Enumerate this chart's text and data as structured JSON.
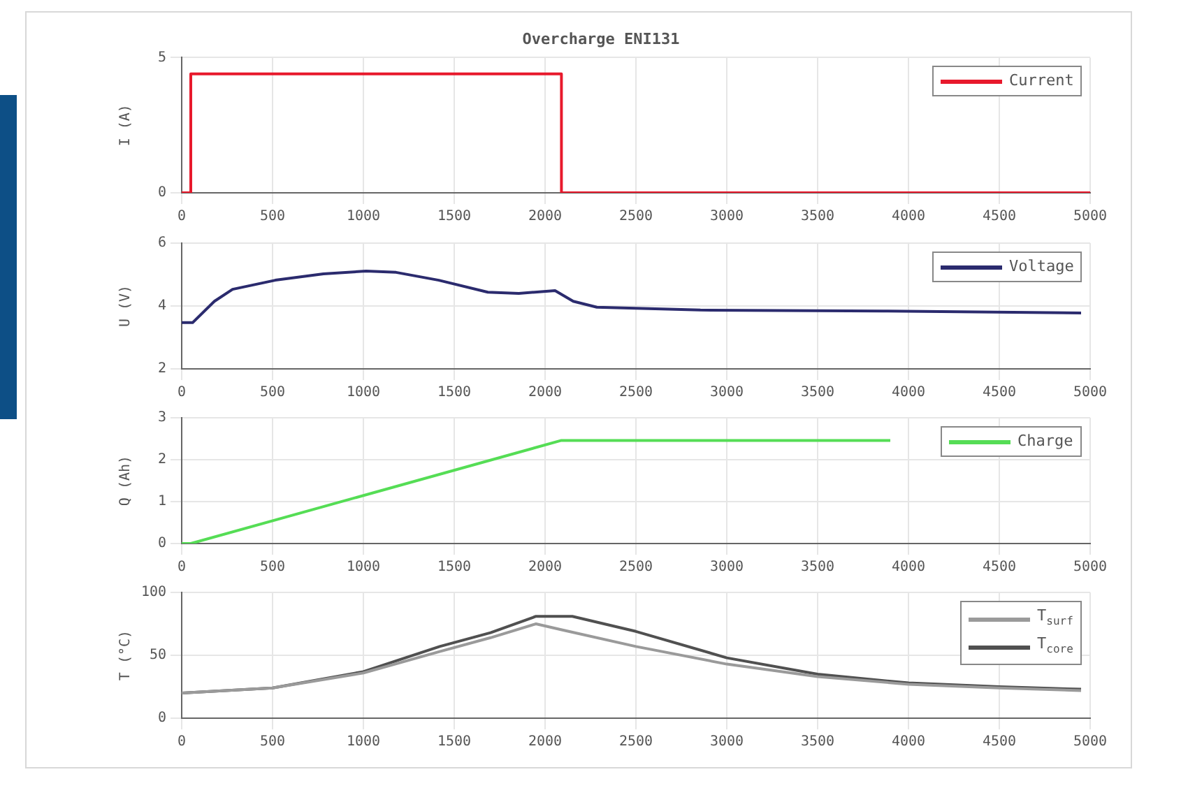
{
  "chart_data": [
    {
      "type": "line",
      "title": "Overcharge ENI131",
      "ylabel": "I (A)",
      "xlim": [
        0,
        5000
      ],
      "xticks": [
        0,
        500,
        1000,
        1500,
        2000,
        2500,
        3000,
        3500,
        4000,
        4500,
        5000
      ],
      "ylim": [
        0,
        5
      ],
      "yticks": [
        0,
        5
      ],
      "grid": true,
      "legend": "top right",
      "series": [
        {
          "name": "Current",
          "color": "#e8192c",
          "x": [
            0,
            50,
            50,
            2090,
            2090,
            5000
          ],
          "values": [
            0,
            0,
            4.4,
            4.4,
            0,
            0
          ]
        }
      ]
    },
    {
      "type": "line",
      "ylabel": "U (V)",
      "xlim": [
        0,
        5000
      ],
      "xticks": [
        0,
        500,
        1000,
        1500,
        2000,
        2500,
        3000,
        3500,
        4000,
        4500,
        5000
      ],
      "ylim": [
        2,
        6
      ],
      "yticks": [
        2,
        4,
        6
      ],
      "grid": true,
      "legend": "top right",
      "series": [
        {
          "name": "Voltage",
          "color": "#2b2b6e",
          "x": [
            0,
            60,
            180,
            280,
            515,
            780,
            1015,
            1180,
            1415,
            1685,
            1855,
            2055,
            2155,
            2285,
            2855,
            3860,
            4950
          ],
          "values": [
            3.47,
            3.47,
            4.15,
            4.53,
            4.82,
            5.02,
            5.11,
            5.07,
            4.82,
            4.44,
            4.4,
            4.49,
            4.15,
            3.96,
            3.87,
            3.84,
            3.78
          ]
        }
      ]
    },
    {
      "type": "line",
      "ylabel": "Q (Ah)",
      "xlim": [
        0,
        5000
      ],
      "xticks": [
        0,
        500,
        1000,
        1500,
        2000,
        2500,
        3000,
        3500,
        4000,
        4500,
        5000
      ],
      "ylim": [
        0,
        3
      ],
      "yticks": [
        0,
        1,
        2,
        3
      ],
      "grid": true,
      "legend": "top right",
      "series": [
        {
          "name": "Charge",
          "color": "#55dd55",
          "x": [
            0,
            50,
            2090,
            3900
          ],
          "values": [
            0,
            0,
            2.46,
            2.46
          ]
        }
      ]
    },
    {
      "type": "line",
      "ylabel": "T (°C)",
      "xlim": [
        0,
        5000
      ],
      "xticks": [
        0,
        500,
        1000,
        1500,
        2000,
        2500,
        3000,
        3500,
        4000,
        4500,
        5000
      ],
      "ylim": [
        0,
        100
      ],
      "yticks": [
        0,
        50,
        100
      ],
      "grid": true,
      "legend": "top right",
      "series": [
        {
          "name": "T$_{surf}$",
          "color": "#9a9a9a",
          "x": [
            0,
            500,
            1000,
            1420,
            1700,
            1950,
            2100,
            2500,
            3000,
            3500,
            4000,
            4500,
            4950
          ],
          "values": [
            20,
            24,
            36,
            53,
            64,
            75,
            70,
            57,
            43,
            33,
            27,
            24,
            22
          ]
        },
        {
          "name": "T$_{core}$",
          "color": "#505050",
          "x": [
            0,
            500,
            1000,
            1420,
            1700,
            1950,
            2150,
            2500,
            3000,
            3500,
            4000,
            4500,
            4950
          ],
          "values": [
            20,
            24,
            37,
            57,
            68,
            81,
            81,
            69,
            48,
            35,
            28,
            25,
            23
          ]
        }
      ]
    }
  ]
}
